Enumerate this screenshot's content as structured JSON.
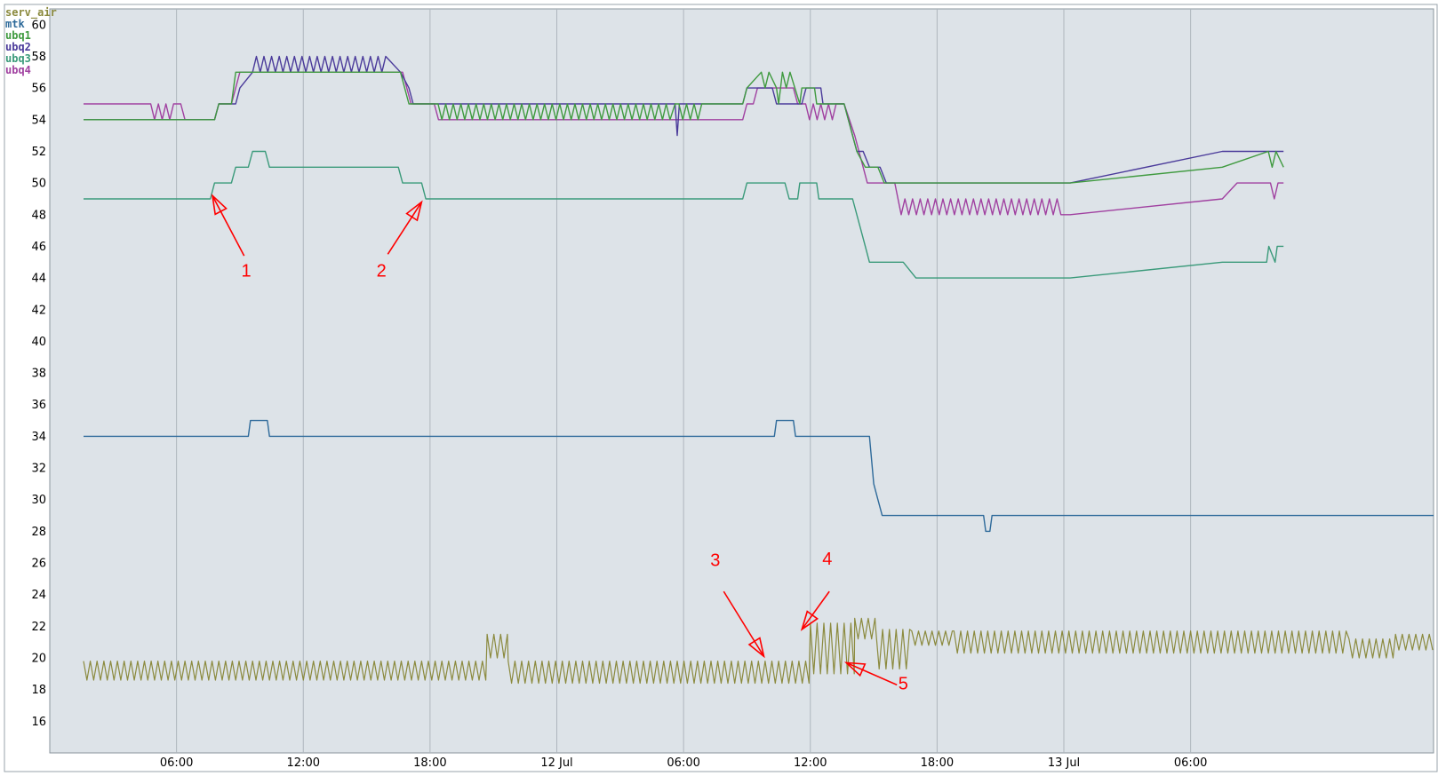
{
  "chart_data": {
    "type": "line",
    "title": "",
    "xlabel": "",
    "ylabel": "",
    "x_range_hours": [
      0,
      65.5
    ],
    "ylim": [
      14,
      61
    ],
    "y_ticks": [
      16,
      18,
      20,
      22,
      24,
      26,
      28,
      30,
      32,
      34,
      36,
      38,
      40,
      42,
      44,
      46,
      48,
      50,
      52,
      54,
      56,
      58,
      60
    ],
    "x_ticks": [
      {
        "h": 6,
        "label": "06:00"
      },
      {
        "h": 12,
        "label": "12:00"
      },
      {
        "h": 18,
        "label": "18:00"
      },
      {
        "h": 24,
        "label": "12 Jul"
      },
      {
        "h": 30,
        "label": "06:00"
      },
      {
        "h": 36,
        "label": "12:00"
      },
      {
        "h": 42,
        "label": "18:00"
      },
      {
        "h": 48,
        "label": "13 Jul"
      },
      {
        "h": 54,
        "label": "06:00"
      }
    ],
    "grid": true,
    "legend_position": "top-left",
    "background_color": "#dde3e8",
    "series": [
      {
        "name": "serv_air",
        "color": "#8b8a3e",
        "kind": "oscillating",
        "segments": [
          [
            1.6,
            20.7,
            18.6,
            19.8
          ],
          [
            20.7,
            21.7,
            20.0,
            21.5
          ],
          [
            21.7,
            36.0,
            18.4,
            19.8
          ],
          [
            36.0,
            38.1,
            19.0,
            22.2
          ],
          [
            38.1,
            39.1,
            21.2,
            22.5
          ],
          [
            39.1,
            40.8,
            19.3,
            21.8
          ],
          [
            40.8,
            42.8,
            20.8,
            21.7
          ],
          [
            42.8,
            61.5,
            20.3,
            21.7
          ],
          [
            61.5,
            63.7,
            20.0,
            21.2
          ],
          [
            63.7,
            65.5,
            20.5,
            21.5
          ]
        ]
      },
      {
        "name": "mtk",
        "color": "#2e6a9a",
        "points": [
          [
            1.6,
            34
          ],
          [
            9.4,
            34
          ],
          [
            9.5,
            35
          ],
          [
            10.3,
            35
          ],
          [
            10.4,
            34
          ],
          [
            34.3,
            34
          ],
          [
            34.4,
            35
          ],
          [
            35.2,
            35
          ],
          [
            35.3,
            34
          ],
          [
            38.8,
            34
          ],
          [
            39.0,
            31
          ],
          [
            39.2,
            30
          ],
          [
            39.4,
            29
          ],
          [
            44.2,
            29
          ],
          [
            44.3,
            28
          ],
          [
            44.5,
            28
          ],
          [
            44.6,
            29
          ],
          [
            65.5,
            29
          ]
        ]
      },
      {
        "name": "ubq3",
        "color": "#3a9a7a",
        "points": [
          [
            1.6,
            49
          ],
          [
            7.6,
            49
          ],
          [
            7.8,
            50
          ],
          [
            8.6,
            50
          ],
          [
            8.8,
            51
          ],
          [
            9.4,
            51
          ],
          [
            9.6,
            52
          ],
          [
            10.2,
            52
          ],
          [
            10.4,
            51
          ],
          [
            16.5,
            51
          ],
          [
            16.7,
            50
          ],
          [
            17.6,
            50
          ],
          [
            17.8,
            49
          ],
          [
            32.8,
            49
          ],
          [
            33.0,
            50
          ],
          [
            34.8,
            50
          ],
          [
            35.0,
            49
          ],
          [
            35.4,
            49
          ],
          [
            35.5,
            50
          ],
          [
            36.3,
            50
          ],
          [
            36.4,
            49
          ],
          [
            38.0,
            49
          ],
          [
            38.6,
            46
          ],
          [
            38.8,
            45
          ],
          [
            40.4,
            45
          ],
          [
            41.0,
            44
          ],
          [
            48.3,
            44
          ],
          [
            55.5,
            45
          ],
          [
            57.6,
            45
          ],
          [
            57.7,
            46
          ],
          [
            58.0,
            45
          ],
          [
            58.1,
            46
          ],
          [
            58.4,
            46
          ]
        ]
      },
      {
        "name": "ubq4",
        "color": "#a040a0",
        "points": [
          [
            1.6,
            55
          ],
          [
            6.2,
            55
          ],
          [
            6.4,
            54
          ],
          [
            7.8,
            54
          ],
          [
            8.0,
            55
          ],
          [
            8.6,
            55
          ],
          [
            8.8,
            56
          ],
          [
            9.0,
            57
          ],
          [
            16.7,
            57
          ],
          [
            17.1,
            55
          ],
          [
            18.2,
            55
          ],
          [
            18.4,
            54
          ],
          [
            32.8,
            54
          ],
          [
            33.0,
            55
          ],
          [
            33.3,
            55
          ],
          [
            33.5,
            56
          ],
          [
            35.2,
            56
          ],
          [
            35.4,
            55
          ],
          [
            37.6,
            55
          ],
          [
            38.1,
            53
          ],
          [
            38.5,
            51
          ],
          [
            38.7,
            50
          ],
          [
            40.0,
            50
          ],
          [
            40.3,
            48
          ],
          [
            48.3,
            48
          ],
          [
            55.5,
            49
          ],
          [
            56.2,
            50
          ],
          [
            58.4,
            50
          ]
        ]
      },
      {
        "name": "ubq2",
        "color": "#4a3a9a",
        "points": [
          [
            1.6,
            54
          ],
          [
            7.8,
            54
          ],
          [
            8.0,
            55
          ],
          [
            8.8,
            55
          ],
          [
            9.0,
            56
          ],
          [
            9.6,
            57
          ],
          [
            16.6,
            57
          ],
          [
            17.0,
            56
          ],
          [
            17.2,
            55
          ],
          [
            29.6,
            55
          ],
          [
            29.7,
            53
          ],
          [
            29.8,
            55
          ],
          [
            32.8,
            55
          ],
          [
            33.0,
            56
          ],
          [
            34.2,
            56
          ],
          [
            34.4,
            55
          ],
          [
            35.6,
            55
          ],
          [
            35.8,
            56
          ],
          [
            36.5,
            56
          ],
          [
            36.6,
            55
          ],
          [
            37.6,
            55
          ],
          [
            38.2,
            52
          ],
          [
            38.5,
            52
          ],
          [
            38.8,
            51
          ],
          [
            39.3,
            51
          ],
          [
            39.6,
            50
          ],
          [
            48.3,
            50
          ],
          [
            55.5,
            52
          ],
          [
            58.4,
            52
          ]
        ]
      },
      {
        "name": "ubq1",
        "color": "#3f9a3f",
        "points": [
          [
            1.6,
            54
          ],
          [
            7.8,
            54
          ],
          [
            8.0,
            55
          ],
          [
            8.6,
            55
          ],
          [
            8.8,
            57
          ],
          [
            16.6,
            57
          ],
          [
            17.0,
            55
          ],
          [
            29.6,
            55
          ],
          [
            32.8,
            55
          ],
          [
            33.0,
            56
          ],
          [
            34.4,
            56
          ],
          [
            34.5,
            55
          ],
          [
            35.5,
            55
          ],
          [
            35.6,
            56
          ],
          [
            36.2,
            56
          ],
          [
            36.3,
            55
          ],
          [
            37.6,
            55
          ],
          [
            38.2,
            52
          ],
          [
            38.6,
            51
          ],
          [
            39.2,
            51
          ],
          [
            39.5,
            50
          ],
          [
            48.3,
            50
          ],
          [
            55.5,
            51
          ],
          [
            58.4,
            51
          ]
        ]
      }
    ],
    "noisy_ranges": [
      {
        "series": "ubq1",
        "from": 18.2,
        "to": 31.2,
        "low": 54,
        "high": 55
      },
      {
        "series": "ubq1",
        "from": 33.5,
        "to": 35.3,
        "low": 56,
        "high": 57
      },
      {
        "series": "ubq1",
        "from": 57.5,
        "to": 58.4,
        "low": 51,
        "high": 52
      },
      {
        "series": "ubq2",
        "from": 9.4,
        "to": 16.2,
        "low": 57,
        "high": 58
      },
      {
        "series": "ubq4",
        "from": 4.6,
        "to": 6.2,
        "low": 54,
        "high": 55
      },
      {
        "series": "ubq4",
        "from": 35.6,
        "to": 37.5,
        "low": 54,
        "high": 55
      },
      {
        "series": "ubq4",
        "from": 40.3,
        "to": 48.2,
        "low": 48,
        "high": 49
      },
      {
        "series": "ubq4",
        "from": 57.6,
        "to": 58.4,
        "low": 49,
        "high": 50
      }
    ],
    "annotations": [
      {
        "label": "1",
        "target": [
          7.7,
          49.2
        ],
        "tail": [
          9.2,
          45.4
        ],
        "text_at": [
          9.3,
          44.1
        ]
      },
      {
        "label": "2",
        "target": [
          17.6,
          48.8
        ],
        "tail": [
          16.0,
          45.5
        ],
        "text_at": [
          15.7,
          44.1
        ]
      },
      {
        "label": "3",
        "target": [
          33.8,
          20.1
        ],
        "tail": [
          31.9,
          24.2
        ],
        "text_at": [
          31.5,
          25.8
        ]
      },
      {
        "label": "4",
        "target": [
          35.6,
          21.8
        ],
        "tail": [
          36.9,
          24.2
        ],
        "text_at": [
          36.8,
          25.9
        ]
      },
      {
        "label": "5",
        "target": [
          37.7,
          19.7
        ],
        "tail": [
          40.1,
          18.3
        ],
        "text_at": [
          40.4,
          18.0
        ]
      }
    ]
  }
}
